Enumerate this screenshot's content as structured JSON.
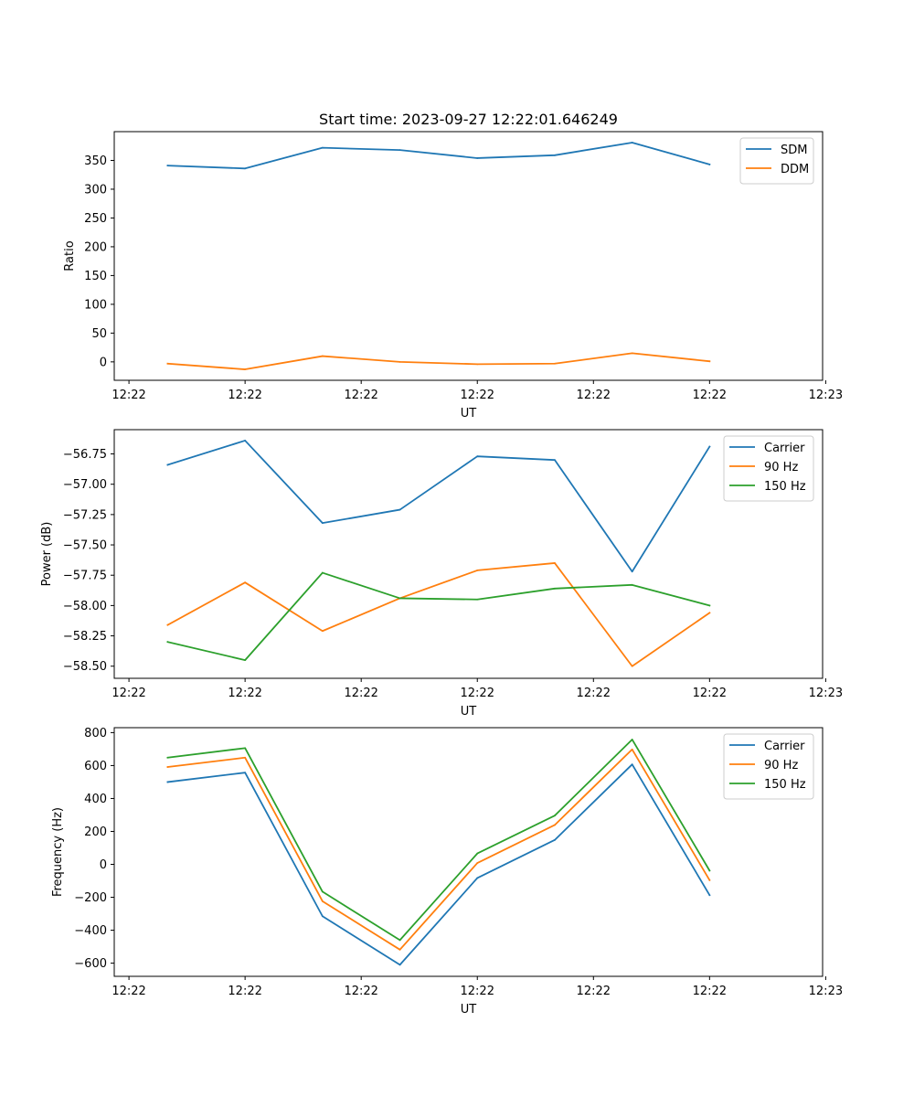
{
  "title": "Start time: 2023-09-27 12:22:01.646249",
  "colors": {
    "c0": "#1f77b4",
    "c1": "#ff7f0e",
    "c2": "#2ca02c"
  },
  "chart_data": [
    {
      "type": "line",
      "title": "Start time: 2023-09-27 12:22:01.646249",
      "xlabel": "UT",
      "ylabel": "Ratio",
      "x": [
        1,
        2,
        3,
        4,
        5,
        6,
        7,
        8
      ],
      "xlim": [
        0.31,
        9.46
      ],
      "ylim": [
        -32,
        400
      ],
      "xticks": [
        0.5,
        2.0,
        3.5,
        5.0,
        6.5,
        8.0,
        9.5
      ],
      "xtick_labels": [
        "12:22",
        "12:22",
        "12:22",
        "12:22",
        "12:22",
        "12:22",
        "12:23"
      ],
      "yticks": [
        0,
        50,
        100,
        150,
        200,
        250,
        300,
        350
      ],
      "ytick_labels": [
        "0",
        "50",
        "100",
        "150",
        "200",
        "250",
        "300",
        "350"
      ],
      "legend": "top-right",
      "series": [
        {
          "name": "SDM",
          "color": "#1f77b4",
          "values": [
            341,
            336,
            372,
            368,
            354,
            359,
            381,
            343
          ]
        },
        {
          "name": "DDM",
          "color": "#ff7f0e",
          "values": [
            -3,
            -13,
            10,
            0,
            -4,
            -3,
            15,
            1
          ]
        }
      ]
    },
    {
      "type": "line",
      "xlabel": "UT",
      "ylabel": "Power (dB)",
      "x": [
        1,
        2,
        3,
        4,
        5,
        6,
        7,
        8
      ],
      "xlim": [
        0.31,
        9.46
      ],
      "ylim": [
        -58.6,
        -56.55
      ],
      "xticks": [
        0.5,
        2.0,
        3.5,
        5.0,
        6.5,
        8.0,
        9.5
      ],
      "xtick_labels": [
        "12:22",
        "12:22",
        "12:22",
        "12:22",
        "12:22",
        "12:22",
        "12:23"
      ],
      "yticks": [
        -58.5,
        -58.25,
        -58.0,
        -57.75,
        -57.5,
        -57.25,
        -57.0,
        -56.75
      ],
      "ytick_labels": [
        "−58.50",
        "−58.25",
        "−58.00",
        "−57.75",
        "−57.50",
        "−57.25",
        "−57.00",
        "−56.75"
      ],
      "legend": "top-right",
      "series": [
        {
          "name": "Carrier",
          "color": "#1f77b4",
          "values": [
            -56.84,
            -56.64,
            -57.32,
            -57.21,
            -56.77,
            -56.8,
            -57.72,
            -56.69
          ]
        },
        {
          "name": "90 Hz",
          "color": "#ff7f0e",
          "values": [
            -58.16,
            -57.81,
            -58.21,
            -57.94,
            -57.71,
            -57.65,
            -58.5,
            -58.06
          ]
        },
        {
          "name": "150 Hz",
          "color": "#2ca02c",
          "values": [
            -58.3,
            -58.45,
            -57.73,
            -57.94,
            -57.95,
            -57.86,
            -57.83,
            -58.0
          ]
        }
      ]
    },
    {
      "type": "line",
      "xlabel": "UT",
      "ylabel": "Frequency (Hz)",
      "x": [
        1,
        2,
        3,
        4,
        5,
        6,
        7,
        8
      ],
      "xlim": [
        0.31,
        9.46
      ],
      "ylim": [
        -680,
        830
      ],
      "xticks": [
        0.5,
        2.0,
        3.5,
        5.0,
        6.5,
        8.0,
        9.5
      ],
      "xtick_labels": [
        "12:22",
        "12:22",
        "12:22",
        "12:22",
        "12:22",
        "12:22",
        "12:23"
      ],
      "yticks": [
        -600,
        -400,
        -200,
        0,
        200,
        400,
        600,
        800
      ],
      "ytick_labels": [
        "−600",
        "−400",
        "−200",
        "0",
        "200",
        "400",
        "600",
        "800"
      ],
      "legend": "top-right",
      "series": [
        {
          "name": "Carrier",
          "color": "#1f77b4",
          "values": [
            500,
            557,
            -315,
            -610,
            -83,
            148,
            607,
            -187
          ]
        },
        {
          "name": "90 Hz",
          "color": "#ff7f0e",
          "values": [
            591,
            648,
            -224,
            -518,
            8,
            239,
            698,
            -96
          ]
        },
        {
          "name": "150 Hz",
          "color": "#2ca02c",
          "values": [
            648,
            706,
            -166,
            -460,
            66,
            296,
            758,
            -38
          ]
        }
      ]
    }
  ]
}
